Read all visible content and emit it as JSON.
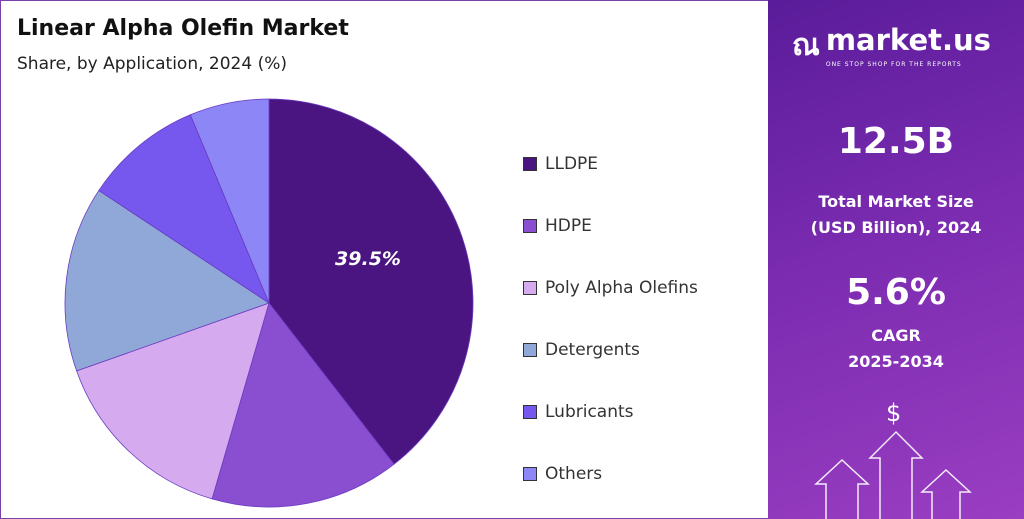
{
  "header": {
    "title": "Linear Alpha Olefin Market",
    "subtitle": "Share, by Application, 2024 (%)"
  },
  "chart_data": {
    "type": "pie",
    "title": "Linear Alpha Olefin Market",
    "subtitle": "Share, by Application, 2024 (%)",
    "categories": [
      "LLDPE",
      "HDPE",
      "Poly Alpha Olefins",
      "Detergents",
      "Lubricants",
      "Others"
    ],
    "values": [
      39.5,
      15.0,
      15.1,
      14.7,
      9.4,
      6.3
    ],
    "colors": [
      "#4a1580",
      "#8a4fd0",
      "#d6aaee",
      "#8fa8d8",
      "#7658ee",
      "#8c86f6"
    ],
    "data_labels": [
      "39.5%",
      "",
      "",
      "",
      "",
      ""
    ],
    "legend": "right"
  },
  "sidebar": {
    "brand": "market.us",
    "tagline": "ONE STOP SHOP FOR THE REPORTS",
    "market_size": "12.5B",
    "market_size_label_1": "Total Market Size",
    "market_size_label_2": "(USD Billion), 2024",
    "cagr": "5.6%",
    "cagr_label_1": "CAGR",
    "cagr_label_2": "2025-2034",
    "dollar": "$"
  }
}
